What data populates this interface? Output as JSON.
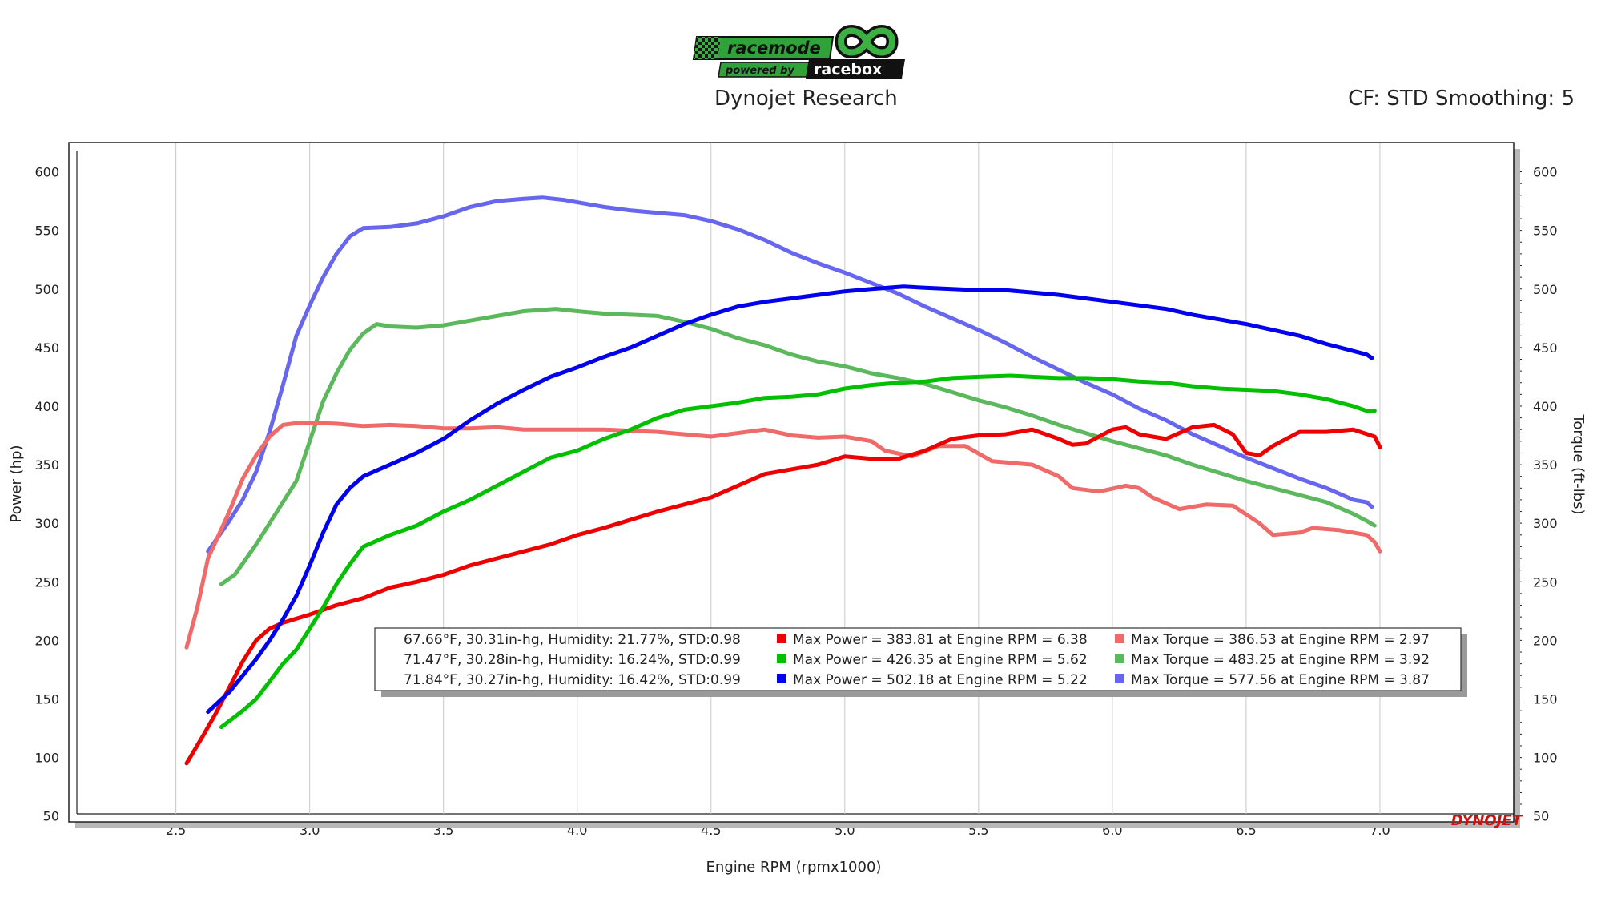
{
  "header": {
    "logo_text": "racemode",
    "logo_sub": "powered by",
    "logo_brand": "racebox",
    "title": "Dynojet Research",
    "cf": "CF: STD Smoothing: 5",
    "watermark": "DYNOJET"
  },
  "chart_data": {
    "type": "line",
    "xlabel": "Engine RPM (rpmx1000)",
    "ylabel_left": "Power (hp)",
    "ylabel_right": "Torque (ft-lbs)",
    "xlim": [
      2.1,
      7.5
    ],
    "ylim": [
      45,
      625
    ],
    "x_ticks": [
      "2.5",
      "3.0",
      "3.5",
      "4.0",
      "4.5",
      "5.0",
      "5.5",
      "6.0",
      "6.5",
      "7.0"
    ],
    "y_ticks": [
      "50",
      "100",
      "150",
      "200",
      "250",
      "300",
      "350",
      "400",
      "450",
      "500",
      "550",
      "600"
    ],
    "legend_conditions": [
      "67.66°F, 30.31in-hg, Humidity: 21.77%, STD:0.98",
      "71.47°F, 30.28in-hg, Humidity: 16.24%, STD:0.99",
      "71.84°F, 30.27in-hg, Humidity: 16.42%, STD:0.99"
    ],
    "series": [
      {
        "name": "Max Power = 383.81 at Engine RPM = 6.38",
        "color": "#ee0000",
        "kind": "power",
        "points": [
          [
            2.54,
            95
          ],
          [
            2.6,
            118
          ],
          [
            2.65,
            138
          ],
          [
            2.7,
            160
          ],
          [
            2.75,
            182
          ],
          [
            2.8,
            200
          ],
          [
            2.85,
            210
          ],
          [
            2.9,
            215
          ],
          [
            3.0,
            222
          ],
          [
            3.1,
            230
          ],
          [
            3.2,
            236
          ],
          [
            3.3,
            245
          ],
          [
            3.4,
            250
          ],
          [
            3.5,
            256
          ],
          [
            3.6,
            264
          ],
          [
            3.7,
            270
          ],
          [
            3.8,
            276
          ],
          [
            3.9,
            282
          ],
          [
            4.0,
            290
          ],
          [
            4.1,
            296
          ],
          [
            4.2,
            303
          ],
          [
            4.3,
            310
          ],
          [
            4.4,
            316
          ],
          [
            4.5,
            322
          ],
          [
            4.6,
            332
          ],
          [
            4.7,
            342
          ],
          [
            4.8,
            346
          ],
          [
            4.9,
            350
          ],
          [
            5.0,
            357
          ],
          [
            5.1,
            355
          ],
          [
            5.2,
            355
          ],
          [
            5.3,
            362
          ],
          [
            5.4,
            372
          ],
          [
            5.5,
            375
          ],
          [
            5.6,
            376
          ],
          [
            5.7,
            380
          ],
          [
            5.8,
            372
          ],
          [
            5.85,
            367
          ],
          [
            5.9,
            368
          ],
          [
            6.0,
            380
          ],
          [
            6.05,
            382
          ],
          [
            6.1,
            376
          ],
          [
            6.2,
            372
          ],
          [
            6.3,
            382
          ],
          [
            6.38,
            384
          ],
          [
            6.45,
            376
          ],
          [
            6.5,
            360
          ],
          [
            6.55,
            358
          ],
          [
            6.6,
            366
          ],
          [
            6.7,
            378
          ],
          [
            6.8,
            378
          ],
          [
            6.9,
            380
          ],
          [
            6.98,
            374
          ],
          [
            7.0,
            365
          ]
        ]
      },
      {
        "name": "Max Power = 426.35 at Engine RPM = 5.62",
        "color": "#00c000",
        "kind": "power",
        "points": [
          [
            2.67,
            126
          ],
          [
            2.75,
            140
          ],
          [
            2.8,
            150
          ],
          [
            2.85,
            165
          ],
          [
            2.9,
            180
          ],
          [
            2.95,
            192
          ],
          [
            3.0,
            210
          ],
          [
            3.05,
            228
          ],
          [
            3.1,
            248
          ],
          [
            3.15,
            265
          ],
          [
            3.2,
            280
          ],
          [
            3.3,
            290
          ],
          [
            3.4,
            298
          ],
          [
            3.5,
            310
          ],
          [
            3.6,
            320
          ],
          [
            3.7,
            332
          ],
          [
            3.8,
            344
          ],
          [
            3.9,
            356
          ],
          [
            4.0,
            362
          ],
          [
            4.1,
            372
          ],
          [
            4.2,
            380
          ],
          [
            4.3,
            390
          ],
          [
            4.4,
            397
          ],
          [
            4.5,
            400
          ],
          [
            4.6,
            403
          ],
          [
            4.7,
            407
          ],
          [
            4.8,
            408
          ],
          [
            4.9,
            410
          ],
          [
            5.0,
            415
          ],
          [
            5.1,
            418
          ],
          [
            5.2,
            420
          ],
          [
            5.3,
            421
          ],
          [
            5.4,
            424
          ],
          [
            5.5,
            425
          ],
          [
            5.62,
            426
          ],
          [
            5.7,
            425
          ],
          [
            5.8,
            424
          ],
          [
            5.9,
            424
          ],
          [
            6.0,
            423
          ],
          [
            6.1,
            421
          ],
          [
            6.2,
            420
          ],
          [
            6.3,
            417
          ],
          [
            6.4,
            415
          ],
          [
            6.5,
            414
          ],
          [
            6.6,
            413
          ],
          [
            6.7,
            410
          ],
          [
            6.8,
            406
          ],
          [
            6.9,
            400
          ],
          [
            6.95,
            396
          ],
          [
            6.98,
            396
          ]
        ]
      },
      {
        "name": "Max Power = 502.18 at Engine RPM = 5.22",
        "color": "#0000ee",
        "kind": "power",
        "points": [
          [
            2.62,
            139
          ],
          [
            2.7,
            156
          ],
          [
            2.8,
            184
          ],
          [
            2.85,
            200
          ],
          [
            2.9,
            218
          ],
          [
            2.95,
            238
          ],
          [
            3.0,
            264
          ],
          [
            3.05,
            292
          ],
          [
            3.1,
            316
          ],
          [
            3.15,
            330
          ],
          [
            3.2,
            340
          ],
          [
            3.3,
            350
          ],
          [
            3.4,
            360
          ],
          [
            3.5,
            372
          ],
          [
            3.6,
            388
          ],
          [
            3.7,
            402
          ],
          [
            3.8,
            414
          ],
          [
            3.9,
            425
          ],
          [
            4.0,
            433
          ],
          [
            4.1,
            442
          ],
          [
            4.2,
            450
          ],
          [
            4.3,
            460
          ],
          [
            4.4,
            470
          ],
          [
            4.5,
            478
          ],
          [
            4.6,
            485
          ],
          [
            4.7,
            489
          ],
          [
            4.8,
            492
          ],
          [
            4.9,
            495
          ],
          [
            5.0,
            498
          ],
          [
            5.1,
            500
          ],
          [
            5.22,
            502
          ],
          [
            5.3,
            501
          ],
          [
            5.4,
            500
          ],
          [
            5.5,
            499
          ],
          [
            5.6,
            499
          ],
          [
            5.7,
            497
          ],
          [
            5.8,
            495
          ],
          [
            5.9,
            492
          ],
          [
            6.0,
            489
          ],
          [
            6.1,
            486
          ],
          [
            6.2,
            483
          ],
          [
            6.3,
            478
          ],
          [
            6.4,
            474
          ],
          [
            6.5,
            470
          ],
          [
            6.6,
            465
          ],
          [
            6.7,
            460
          ],
          [
            6.8,
            453
          ],
          [
            6.9,
            447
          ],
          [
            6.95,
            444
          ],
          [
            6.97,
            441
          ]
        ]
      },
      {
        "name": "Max Torque = 386.53 at Engine RPM = 2.97",
        "color": "#f06a6a",
        "kind": "torque",
        "points": [
          [
            2.54,
            194
          ],
          [
            2.58,
            228
          ],
          [
            2.62,
            270
          ],
          [
            2.7,
            310
          ],
          [
            2.75,
            338
          ],
          [
            2.8,
            358
          ],
          [
            2.85,
            374
          ],
          [
            2.9,
            384
          ],
          [
            2.97,
            386
          ],
          [
            3.1,
            385
          ],
          [
            3.2,
            383
          ],
          [
            3.3,
            384
          ],
          [
            3.4,
            383
          ],
          [
            3.5,
            381
          ],
          [
            3.6,
            381
          ],
          [
            3.7,
            382
          ],
          [
            3.8,
            380
          ],
          [
            3.9,
            380
          ],
          [
            4.0,
            380
          ],
          [
            4.1,
            380
          ],
          [
            4.2,
            379
          ],
          [
            4.3,
            378
          ],
          [
            4.4,
            376
          ],
          [
            4.5,
            374
          ],
          [
            4.6,
            377
          ],
          [
            4.7,
            380
          ],
          [
            4.8,
            375
          ],
          [
            4.9,
            373
          ],
          [
            5.0,
            374
          ],
          [
            5.1,
            370
          ],
          [
            5.15,
            362
          ],
          [
            5.25,
            357
          ],
          [
            5.35,
            366
          ],
          [
            5.45,
            366
          ],
          [
            5.55,
            353
          ],
          [
            5.7,
            350
          ],
          [
            5.8,
            340
          ],
          [
            5.85,
            330
          ],
          [
            5.95,
            327
          ],
          [
            6.05,
            332
          ],
          [
            6.1,
            330
          ],
          [
            6.15,
            322
          ],
          [
            6.25,
            312
          ],
          [
            6.35,
            316
          ],
          [
            6.45,
            315
          ],
          [
            6.55,
            300
          ],
          [
            6.6,
            290
          ],
          [
            6.7,
            292
          ],
          [
            6.75,
            296
          ],
          [
            6.85,
            294
          ],
          [
            6.95,
            290
          ],
          [
            6.98,
            284
          ],
          [
            7.0,
            276
          ]
        ]
      },
      {
        "name": "Max Torque = 483.25 at Engine RPM = 3.92",
        "color": "#5cb85c",
        "kind": "torque",
        "points": [
          [
            2.67,
            248
          ],
          [
            2.72,
            256
          ],
          [
            2.8,
            282
          ],
          [
            2.9,
            318
          ],
          [
            2.95,
            336
          ],
          [
            3.0,
            370
          ],
          [
            3.05,
            404
          ],
          [
            3.1,
            428
          ],
          [
            3.15,
            448
          ],
          [
            3.2,
            462
          ],
          [
            3.25,
            470
          ],
          [
            3.3,
            468
          ],
          [
            3.4,
            467
          ],
          [
            3.5,
            469
          ],
          [
            3.6,
            473
          ],
          [
            3.7,
            477
          ],
          [
            3.8,
            481
          ],
          [
            3.92,
            483
          ],
          [
            4.0,
            481
          ],
          [
            4.1,
            479
          ],
          [
            4.2,
            478
          ],
          [
            4.3,
            477
          ],
          [
            4.4,
            472
          ],
          [
            4.5,
            466
          ],
          [
            4.6,
            458
          ],
          [
            4.7,
            452
          ],
          [
            4.8,
            444
          ],
          [
            4.9,
            438
          ],
          [
            5.0,
            434
          ],
          [
            5.1,
            428
          ],
          [
            5.2,
            424
          ],
          [
            5.3,
            419
          ],
          [
            5.4,
            412
          ],
          [
            5.5,
            405
          ],
          [
            5.6,
            399
          ],
          [
            5.7,
            392
          ],
          [
            5.8,
            384
          ],
          [
            5.9,
            377
          ],
          [
            6.0,
            370
          ],
          [
            6.1,
            364
          ],
          [
            6.2,
            358
          ],
          [
            6.3,
            350
          ],
          [
            6.4,
            343
          ],
          [
            6.5,
            336
          ],
          [
            6.6,
            330
          ],
          [
            6.7,
            324
          ],
          [
            6.8,
            318
          ],
          [
            6.9,
            308
          ],
          [
            6.95,
            302
          ],
          [
            6.98,
            298
          ]
        ]
      },
      {
        "name": "Max Torque = 577.56 at Engine RPM = 3.87",
        "color": "#6666ee",
        "kind": "torque",
        "points": [
          [
            2.62,
            276
          ],
          [
            2.7,
            302
          ],
          [
            2.75,
            320
          ],
          [
            2.8,
            344
          ],
          [
            2.85,
            378
          ],
          [
            2.9,
            418
          ],
          [
            2.95,
            460
          ],
          [
            3.0,
            486
          ],
          [
            3.05,
            510
          ],
          [
            3.1,
            530
          ],
          [
            3.15,
            545
          ],
          [
            3.2,
            552
          ],
          [
            3.3,
            553
          ],
          [
            3.4,
            556
          ],
          [
            3.5,
            562
          ],
          [
            3.6,
            570
          ],
          [
            3.7,
            575
          ],
          [
            3.8,
            577
          ],
          [
            3.87,
            578
          ],
          [
            3.95,
            576
          ],
          [
            4.0,
            574
          ],
          [
            4.1,
            570
          ],
          [
            4.2,
            567
          ],
          [
            4.3,
            565
          ],
          [
            4.4,
            563
          ],
          [
            4.5,
            558
          ],
          [
            4.6,
            551
          ],
          [
            4.7,
            542
          ],
          [
            4.8,
            531
          ],
          [
            4.9,
            522
          ],
          [
            5.0,
            514
          ],
          [
            5.1,
            505
          ],
          [
            5.2,
            496
          ],
          [
            5.3,
            485
          ],
          [
            5.4,
            475
          ],
          [
            5.5,
            465
          ],
          [
            5.6,
            454
          ],
          [
            5.7,
            442
          ],
          [
            5.8,
            431
          ],
          [
            5.9,
            420
          ],
          [
            6.0,
            410
          ],
          [
            6.1,
            398
          ],
          [
            6.2,
            388
          ],
          [
            6.3,
            376
          ],
          [
            6.4,
            366
          ],
          [
            6.5,
            356
          ],
          [
            6.6,
            347
          ],
          [
            6.7,
            338
          ],
          [
            6.8,
            330
          ],
          [
            6.9,
            320
          ],
          [
            6.95,
            318
          ],
          [
            6.97,
            314
          ]
        ]
      }
    ]
  }
}
